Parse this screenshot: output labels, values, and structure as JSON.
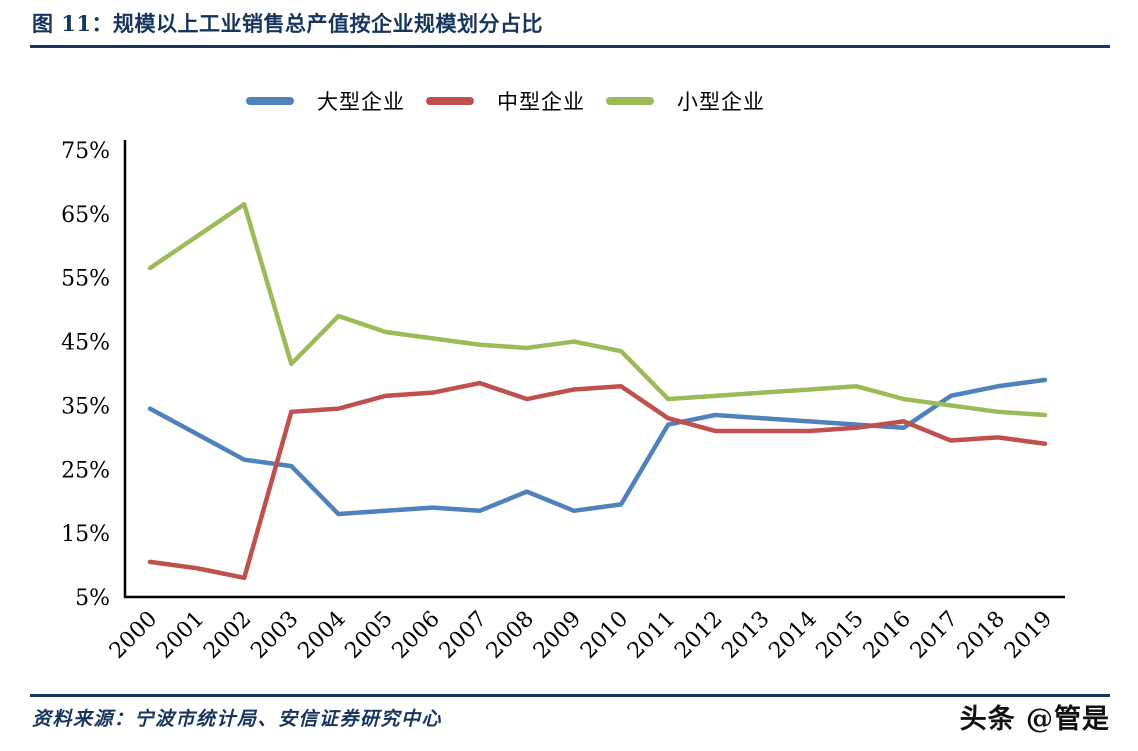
{
  "figure": {
    "title": "图 11：规模以上工业销售总产值按企业规模划分占比",
    "source": "资料来源：宁波市统计局、安信证券研究中心",
    "watermark": "头条 @管是"
  },
  "colors": {
    "accent_navy": "#17365D",
    "axis": "#000000",
    "series_large": "#4F81BD",
    "series_medium": "#C0504D",
    "series_small": "#9BBB59"
  },
  "chart_data": {
    "type": "line",
    "title": "规模以上工业销售总产值按企业规模划分占比",
    "xlabel": "",
    "ylabel": "",
    "x": [
      2000,
      2001,
      2002,
      2003,
      2004,
      2005,
      2006,
      2007,
      2008,
      2009,
      2010,
      2011,
      2012,
      2013,
      2014,
      2015,
      2016,
      2017,
      2018,
      2019
    ],
    "series": [
      {
        "name": "大型企业",
        "color": "#4F81BD",
        "values": [
          34.5,
          30.5,
          26.5,
          25.5,
          18,
          18.5,
          19,
          18.5,
          21.5,
          18.5,
          19.5,
          32,
          33.5,
          33,
          32.5,
          32,
          31.5,
          36.5,
          38,
          39
        ]
      },
      {
        "name": "中型企业",
        "color": "#C0504D",
        "values": [
          10.5,
          9.5,
          8,
          34,
          34.5,
          36.5,
          37,
          38.5,
          36,
          37.5,
          38,
          33,
          31,
          31,
          31,
          31.5,
          32.5,
          29.5,
          30,
          29
        ]
      },
      {
        "name": "小型企业",
        "color": "#9BBB59",
        "values": [
          56.5,
          61.5,
          66.5,
          41.5,
          49,
          46.5,
          45.5,
          44.5,
          44,
          45,
          43.5,
          36,
          36.5,
          37,
          37.5,
          38,
          36,
          35,
          34,
          33.5
        ]
      }
    ],
    "ylim": [
      5,
      75
    ],
    "yticks": [
      5,
      15,
      25,
      35,
      45,
      55,
      65,
      75
    ],
    "ytick_labels": [
      "5%",
      "15%",
      "25%",
      "35%",
      "45%",
      "55%",
      "65%",
      "75%"
    ],
    "grid": false,
    "legend_position": "top"
  }
}
